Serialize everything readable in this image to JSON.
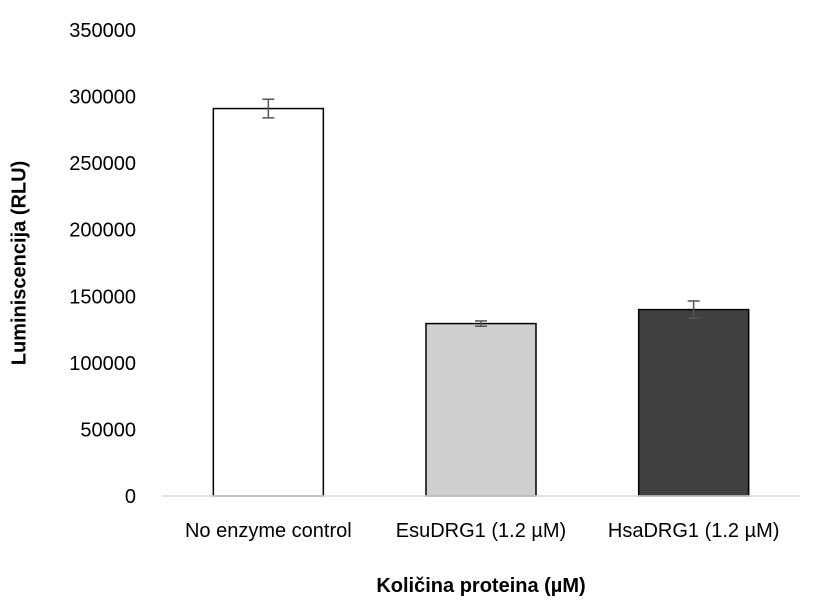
{
  "chart_data": {
    "type": "bar",
    "title": "",
    "xlabel": "Količina proteina (µM)",
    "ylabel": "Luminiscencija (RLU)",
    "categories": [
      "No enzyme control",
      "EsuDRG1 (1.2 µM)",
      "HsaDRG1 (1.2 µM)"
    ],
    "values": [
      291000,
      129500,
      140000
    ],
    "error": [
      7000,
      2000,
      6500
    ],
    "colors": [
      "#ffffff",
      "#d0cfd0",
      "#404040"
    ],
    "bar_outline": "#000000",
    "errorbar_color": "#555555",
    "axis_color": "#d9d9d9",
    "ylim": [
      0,
      350000
    ],
    "yticks": [
      "0",
      "50000",
      "100000",
      "150000",
      "200000",
      "250000",
      "300000",
      "350000"
    ],
    "grid": false,
    "legend": "none"
  }
}
